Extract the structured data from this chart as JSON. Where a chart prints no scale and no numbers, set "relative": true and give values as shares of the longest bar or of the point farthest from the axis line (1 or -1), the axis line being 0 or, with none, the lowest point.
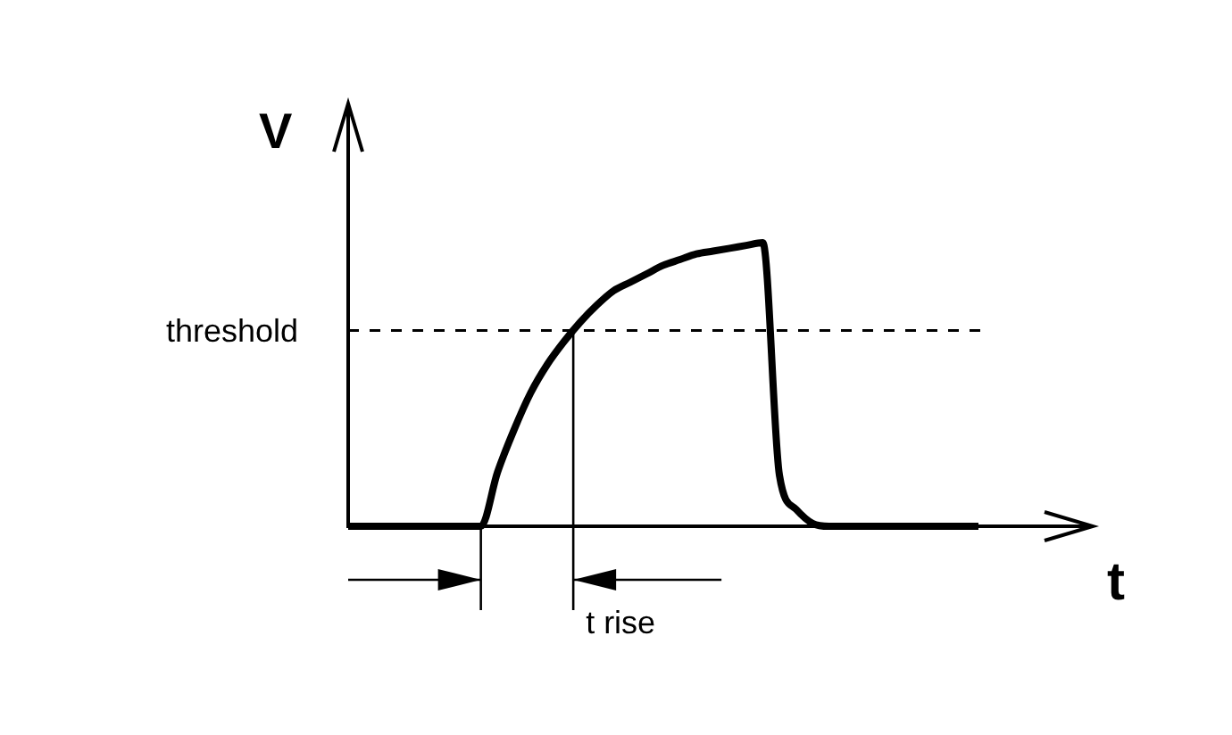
{
  "chart_data": {
    "type": "line",
    "xlabel": "t",
    "ylabel": "V",
    "categories": [
      null,
      null,
      null,
      null,
      null,
      null,
      null,
      null,
      null,
      null,
      null,
      null,
      null,
      null,
      null,
      null,
      null,
      null,
      null,
      null,
      null,
      null,
      null,
      null,
      null,
      null,
      null,
      null,
      null,
      null,
      null,
      null,
      null,
      null,
      null,
      null,
      null,
      null,
      null
    ],
    "values": [
      0,
      0,
      0,
      0,
      0,
      0,
      0,
      0,
      0,
      0.19,
      0.34,
      0.47,
      0.57,
      0.65,
      0.72,
      0.78,
      0.83,
      0.86,
      0.89,
      0.92,
      0.94,
      0.96,
      0.97,
      0.98,
      0.99,
      1,
      0.18,
      0.06,
      0.01,
      0,
      0,
      0,
      0,
      0,
      0,
      0,
      0,
      0,
      0
    ],
    "color": "#000000",
    "relative": true,
    "marker": "none",
    "line_style": "solid",
    "legend": false,
    "grid": false,
    "tick_labels": false,
    "ref_lines": [
      {
        "axis": "y",
        "value": 0.69,
        "label": "threshold",
        "line_style": "dashed",
        "color": "#000000"
      }
    ],
    "annotations": [
      "t rise"
    ]
  }
}
